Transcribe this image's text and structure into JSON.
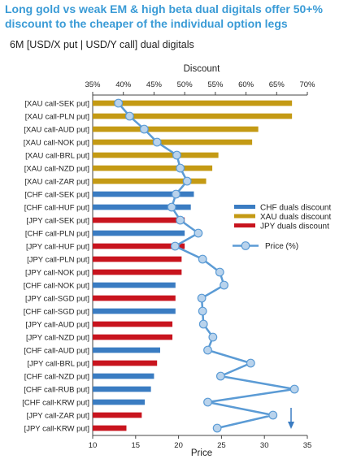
{
  "chart_data": {
    "type": "bar",
    "title": "Long gold vs weak EM & high beta dual digitals offer 50+% discount to the cheaper of the individual option legs",
    "subtitle": "6M [USD/X put | USD/Y call] dual digitals",
    "top_axis_label": "Discount",
    "bottom_axis_label": "Price",
    "top_axis": {
      "range": [
        35,
        70
      ],
      "ticks": [
        "35%",
        "40%",
        "45%",
        "50%",
        "55%",
        "60%",
        "65%",
        "70%"
      ],
      "tick_values": [
        35,
        40,
        45,
        50,
        55,
        60,
        65,
        70
      ]
    },
    "bottom_axis": {
      "range": [
        10,
        35
      ],
      "ticks": [
        "10",
        "15",
        "20",
        "25",
        "30",
        "35"
      ],
      "tick_values": [
        10,
        15,
        20,
        25,
        30,
        35
      ]
    },
    "categories": [
      "[XAU call-SEK put]",
      "[XAU call-PLN put]",
      "[XAU call-AUD put]",
      "[XAU call-NOK put]",
      "[XAU call-BRL put]",
      "[XAU call-NZD put]",
      "[XAU call-ZAR put]",
      "[CHF call-SEK put]",
      "[CHF call-HUF put]",
      "[JPY call-SEK put]",
      "[CHF call-PLN put]",
      "[JPY call-HUF put]",
      "[JPY call-PLN put]",
      "[JPY call-NOK put]",
      "[CHF call-NOK put]",
      "[JPY call-SGD put]",
      "[CHF call-SGD put]",
      "[JPY call-AUD put]",
      "[JPY call-NZD put]",
      "[CHF call-AUD put]",
      "[JPY call-BRL put]",
      "[CHF call-NZD put]",
      "[CHF call-RUB put]",
      "[CHF call-KRW put]",
      "[JPY call-ZAR put]",
      "[JPY call-KRW put]"
    ],
    "groups": [
      "XAU",
      "XAU",
      "XAU",
      "XAU",
      "XAU",
      "XAU",
      "XAU",
      "CHF",
      "CHF",
      "JPY",
      "CHF",
      "JPY",
      "JPY",
      "JPY",
      "CHF",
      "JPY",
      "CHF",
      "JPY",
      "JPY",
      "CHF",
      "JPY",
      "CHF",
      "CHF",
      "CHF",
      "JPY",
      "JPY"
    ],
    "discount_values": [
      67.5,
      67.5,
      62.0,
      61.0,
      55.5,
      54.5,
      53.5,
      51.5,
      51.0,
      50.0,
      50.0,
      50.0,
      49.5,
      49.5,
      48.5,
      48.5,
      48.5,
      48.0,
      48.0,
      46.0,
      45.5,
      45.0,
      44.5,
      43.5,
      43.0,
      40.5
    ],
    "price_values": [
      13.0,
      14.3,
      16.0,
      17.5,
      19.8,
      20.2,
      21.0,
      19.7,
      19.2,
      20.2,
      22.3,
      19.6,
      22.8,
      24.8,
      25.3,
      22.7,
      22.8,
      22.9,
      24.0,
      23.4,
      28.4,
      24.9,
      33.5,
      23.4,
      31.0,
      24.5
    ],
    "series": [
      {
        "name": "CHF duals discount",
        "color": "#3a7cc2"
      },
      {
        "name": "XAU duals discount",
        "color": "#c49a14"
      },
      {
        "name": "JPY duals discount",
        "color": "#c8141e"
      },
      {
        "name": "Price (%)",
        "color": "#5b9bd5",
        "marker_fill": "#b9d3ec"
      }
    ],
    "legend_position": "right",
    "annotation": "arrow-down",
    "grid": false
  }
}
